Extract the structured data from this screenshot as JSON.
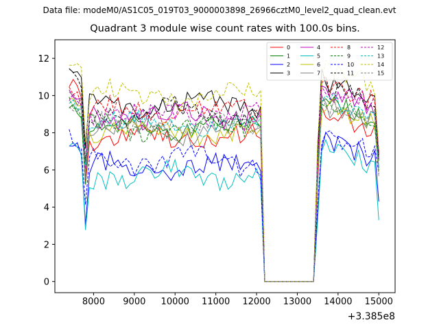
{
  "figure": {
    "suptitle": "Data file: modeM0/AS1C05_019T03_9000003898_26966cztM0_level2_quad_clean.evt",
    "title": "Quadrant 3 module wise count rates with 100.0s bins.",
    "offset_label": "+3.385e8"
  },
  "chart_data": {
    "type": "line",
    "title": "Quadrant 3 module wise count rates with 100.0s bins.",
    "x_offset_label": "+3.385e8",
    "xlabel": "",
    "ylabel": "",
    "x_ticks": [
      8000,
      9000,
      10000,
      11000,
      12000,
      13000,
      14000,
      15000
    ],
    "y_ticks": [
      0,
      2,
      4,
      6,
      8,
      10,
      12
    ],
    "xlim": [
      7050,
      15400
    ],
    "ylim": [
      -0.6,
      13.0
    ],
    "grid": false,
    "legend_position": "top-right",
    "legend_columns": 4,
    "x_start": 7400,
    "x_step": 100,
    "gap_start": 12200,
    "gap_end": 13400,
    "series": [
      {
        "name": "0",
        "color": "#ff0000",
        "dash": false,
        "plateau": 7.7,
        "initial": 10.8,
        "final": 7.0
      },
      {
        "name": "1",
        "color": "#008000",
        "dash": false,
        "plateau": 8.3,
        "initial": 9.6,
        "final": 6.5
      },
      {
        "name": "2",
        "color": "#0000ff",
        "dash": false,
        "plateau": 6.1,
        "initial": 7.5,
        "final": 4.3
      },
      {
        "name": "3",
        "color": "#000000",
        "dash": false,
        "plateau": 9.5,
        "initial": 11.6,
        "final": 6.8
      },
      {
        "name": "4",
        "color": "#bf00bf",
        "dash": false,
        "plateau": 8.9,
        "initial": 10.4,
        "final": 6.6
      },
      {
        "name": "5",
        "color": "#00bfbf",
        "dash": false,
        "plateau": 5.7,
        "initial": 7.3,
        "final": 3.3
      },
      {
        "name": "6",
        "color": "#bfbf00",
        "dash": false,
        "plateau": 8.1,
        "initial": 9.8,
        "final": 5.9
      },
      {
        "name": "7",
        "color": "#808080",
        "dash": false,
        "plateau": 8.1,
        "initial": 10.1,
        "final": 6.1
      },
      {
        "name": "8",
        "color": "#ff0000",
        "dash": true,
        "plateau": 9.1,
        "initial": 10.3,
        "final": 6.9
      },
      {
        "name": "9",
        "color": "#008000",
        "dash": true,
        "plateau": 8.3,
        "initial": 9.7,
        "final": 6.0
      },
      {
        "name": "10",
        "color": "#0000ff",
        "dash": true,
        "plateau": 6.5,
        "initial": 7.9,
        "final": 5.8
      },
      {
        "name": "11",
        "color": "#000000",
        "dash": true,
        "plateau": 9.1,
        "initial": 11.1,
        "final": 6.6
      },
      {
        "name": "12",
        "color": "#bf00bf",
        "dash": true,
        "plateau": 9.0,
        "initial": 10.1,
        "final": 7.0
      },
      {
        "name": "13",
        "color": "#00bfbf",
        "dash": true,
        "plateau": 8.5,
        "initial": 9.9,
        "final": 6.1
      },
      {
        "name": "14",
        "color": "#bfbf00",
        "dash": true,
        "plateau": 10.0,
        "initial": 11.9,
        "final": 7.1
      },
      {
        "name": "15",
        "color": "#808080",
        "dash": true,
        "plateau": 8.3,
        "initial": 9.6,
        "final": 5.6
      }
    ]
  }
}
